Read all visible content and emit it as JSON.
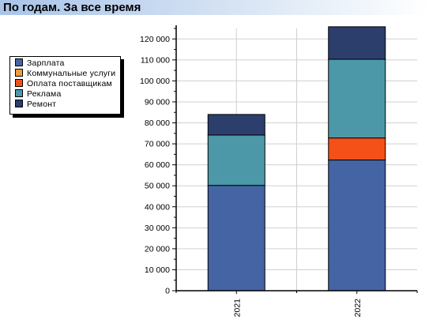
{
  "header": {
    "title": "По годам. За все время"
  },
  "legend": {
    "items": [
      {
        "label": "Зарплата",
        "color": "#4464a4"
      },
      {
        "label": "Коммунальные услуги",
        "color": "#f59a3c"
      },
      {
        "label": "Оплата поставщикам",
        "color": "#f55018"
      },
      {
        "label": "Реклама",
        "color": "#4c98a8"
      },
      {
        "label": "Ремонт",
        "color": "#2c3e6c"
      }
    ]
  },
  "chart_data": {
    "type": "bar",
    "stacked": true,
    "categories": [
      "2021",
      "2022"
    ],
    "series": [
      {
        "name": "Зарплата",
        "color": "#4464a4",
        "values": [
          50200,
          62300
        ]
      },
      {
        "name": "Коммунальные услуги",
        "color": "#f59a3c",
        "values": [
          0,
          0
        ]
      },
      {
        "name": "Оплата поставщикам",
        "color": "#f55018",
        "values": [
          0,
          10500
        ]
      },
      {
        "name": "Реклама",
        "color": "#4c98a8",
        "values": [
          24000,
          37500
        ]
      },
      {
        "name": "Ремонт",
        "color": "#2c3e6c",
        "values": [
          9800,
          15500
        ]
      }
    ],
    "ylim": [
      0,
      125000
    ],
    "ytick_step": 10000,
    "ytick_labels": [
      "0",
      "10 000",
      "20 000",
      "30 000",
      "40 000",
      "50 000",
      "60 000",
      "70 000",
      "80 000",
      "90 000",
      "100 000",
      "110 000",
      "120 000"
    ],
    "grid": true,
    "legend_position": "left"
  }
}
